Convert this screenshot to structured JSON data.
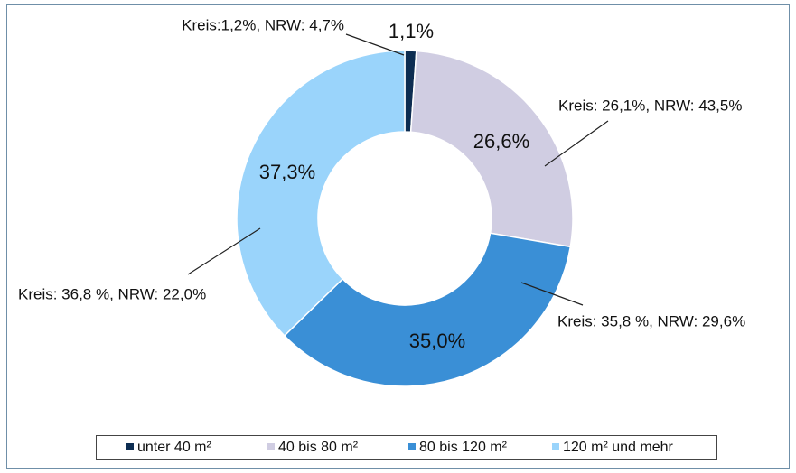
{
  "chart_data": {
    "type": "donut",
    "categories": [
      "unter 40 m²",
      "40 bis 80 m²",
      "80 bis 120 m²",
      "120 m² und mehr"
    ],
    "values": [
      1.1,
      26.6,
      35.0,
      37.3
    ],
    "value_labels": [
      "1,1%",
      "26,6%",
      "35,0%",
      "37,3%"
    ],
    "colors": [
      "#0d2d52",
      "#d0cde2",
      "#3a8fd6",
      "#9ad4fb"
    ],
    "annotations": [
      "Kreis:1,2%, NRW: 4,7%",
      "Kreis: 26,1%, NRW: 43,5%",
      "Kreis: 35,8 %, NRW: 29,6%",
      "Kreis: 36,8 %, NRW: 22,0%"
    ],
    "legend": "bottom"
  }
}
